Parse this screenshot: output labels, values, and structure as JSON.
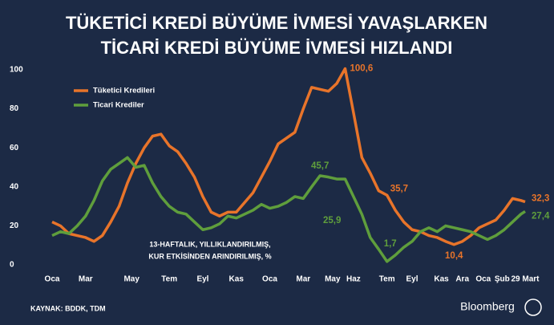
{
  "chart_data": {
    "type": "line",
    "title": [
      "TÜKETİCİ KREDİ BÜYÜME İVMESİ YAVAŞLARKEN",
      "TİCARİ KREDİ BÜYÜME İVMESİ HIZLANDI"
    ],
    "note": [
      "13-HAFTALIK, YILLIKLANDIRILMIŞ,",
      "KUR ETKİSİNDEN ARINDIRILMIŞ, %"
    ],
    "source": "KAYNAK: BDDK, TDM",
    "brand": "Bloomberg",
    "x": [
      0,
      2,
      4,
      6,
      8,
      10,
      12,
      14,
      16,
      18,
      20,
      22,
      24,
      26,
      28,
      30,
      32,
      34,
      36,
      38,
      40,
      42,
      44,
      46,
      48,
      50,
      52,
      54,
      56,
      58,
      60,
      62,
      64,
      66,
      68,
      70,
      72,
      74,
      76,
      78,
      80,
      82,
      84,
      86,
      88,
      90,
      92,
      94,
      96,
      98,
      100,
      102,
      104,
      106,
      108,
      110,
      112,
      113
    ],
    "series": [
      {
        "name": "Tüketici Kredileri",
        "color": "#e8742a",
        "values": [
          22,
          20,
          16,
          15,
          14,
          12,
          15,
          22,
          30,
          42,
          52,
          60,
          66,
          67,
          61,
          58,
          52,
          45,
          35,
          27,
          25,
          27,
          27,
          32,
          37,
          45,
          53,
          62,
          65,
          68,
          80,
          91,
          90,
          89,
          93,
          100.6,
          78,
          55,
          47,
          38,
          35.7,
          28,
          22,
          18,
          17,
          15,
          14,
          12,
          10.4,
          12,
          15,
          19,
          21,
          23,
          28,
          34,
          33,
          32.3
        ]
      },
      {
        "name": "Ticari Krediler",
        "color": "#5f9e3c",
        "values": [
          15,
          17,
          16,
          20,
          25,
          33,
          43,
          49,
          52,
          55,
          50,
          51,
          42,
          35,
          30,
          27,
          26,
          22,
          18,
          19,
          21,
          25,
          24,
          26,
          28,
          31,
          29,
          30,
          32,
          35,
          34,
          40,
          45.7,
          45,
          44,
          44,
          35,
          25.9,
          14,
          8,
          1.7,
          5,
          9,
          12,
          17,
          19,
          17,
          20,
          19,
          18,
          17,
          15,
          13,
          15,
          18,
          22,
          26,
          27.4
        ]
      }
    ],
    "annotations": [
      {
        "x": 70,
        "y": 100.6,
        "label": "100,6",
        "color": "#e8742a"
      },
      {
        "x": 64,
        "y": 45.7,
        "label": "45,7",
        "color": "#5f9e3c"
      },
      {
        "x": 80,
        "y": 35.7,
        "label": "35,7",
        "color": "#e8742a"
      },
      {
        "x": 74,
        "y": 25.9,
        "label": "25,9",
        "color": "#5f9e3c"
      },
      {
        "x": 80,
        "y": 1.7,
        "label": "1,7",
        "color": "#5f9e3c"
      },
      {
        "x": 96,
        "y": 10.4,
        "label": "10,4",
        "color": "#e8742a"
      },
      {
        "x": 113,
        "y": 32.3,
        "label": "32,3",
        "color": "#e8742a"
      },
      {
        "x": 113,
        "y": 27.4,
        "label": "27,4",
        "color": "#5f9e3c"
      }
    ],
    "xlim": [
      0,
      113
    ],
    "xticks": [
      {
        "value": 0,
        "label": "Oca"
      },
      {
        "value": 8,
        "label": "Mar"
      },
      {
        "value": 19,
        "label": "May"
      },
      {
        "value": 28,
        "label": "Tem"
      },
      {
        "value": 36,
        "label": "Eyl"
      },
      {
        "value": 44,
        "label": "Kas"
      },
      {
        "value": 52,
        "label": "Oca"
      },
      {
        "value": 60,
        "label": "Mar"
      },
      {
        "value": 67,
        "label": "May"
      },
      {
        "value": 72,
        "label": "Haz"
      },
      {
        "value": 80,
        "label": "Tem"
      },
      {
        "value": 86,
        "label": "Eyl"
      },
      {
        "value": 93,
        "label": "Kas"
      },
      {
        "value": 98,
        "label": "Ara"
      },
      {
        "value": 103,
        "label": "Oca"
      },
      {
        "value": 107.5,
        "label": "Şub"
      },
      {
        "value": 113,
        "label": "29 Mart"
      }
    ],
    "ylim": [
      0,
      100
    ],
    "yticks": [
      0,
      20,
      40,
      60,
      80,
      100
    ],
    "grid": false
  }
}
